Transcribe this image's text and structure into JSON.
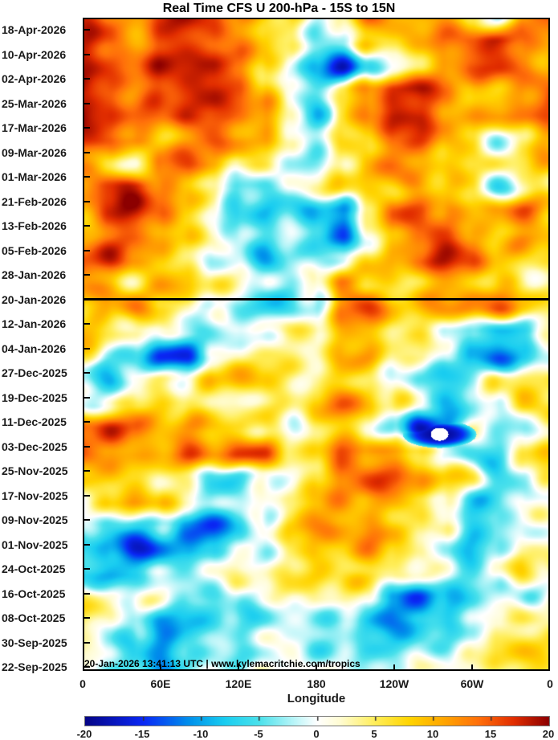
{
  "chart_data": {
    "type": "heatmap",
    "title": "Real Time CFS U 200-hPa - 15S to 15N",
    "xlabel": "Longitude",
    "annotation": "20-Jan-2026 13:41:13 UTC | www.kylemacritchie.com/tropics",
    "x_tick_labels": [
      "0",
      "60E",
      "120E",
      "180",
      "120W",
      "60W",
      "0"
    ],
    "y_tick_labels": [
      "18-Apr-2026",
      "10-Apr-2026",
      "02-Apr-2026",
      "25-Mar-2026",
      "17-Mar-2026",
      "09-Mar-2026",
      "01-Mar-2026",
      "21-Feb-2026",
      "13-Feb-2026",
      "05-Feb-2026",
      "28-Jan-2026",
      "20-Jan-2026",
      "12-Jan-2026",
      "04-Jan-2026",
      "27-Dec-2025",
      "19-Dec-2025",
      "11-Dec-2025",
      "03-Dec-2025",
      "25-Nov-2025",
      "17-Nov-2025",
      "09-Nov-2025",
      "01-Nov-2025",
      "24-Oct-2025",
      "16-Oct-2025",
      "08-Oct-2025",
      "30-Sep-2025",
      "22-Sep-2025"
    ],
    "separator": {
      "label": "20-Jan-2026",
      "y_frac": 0.4293
    },
    "anomaly_spot": {
      "x_frac": 0.7629,
      "y_frac": 0.6372,
      "ring_rx": 46,
      "ring_ry": 17,
      "core_rx": 11,
      "core_ry": 8
    },
    "colorbar": {
      "min": -20,
      "max": 20,
      "tick_labels": [
        "-20",
        "-15",
        "-10",
        "-5",
        "0",
        "5",
        "10",
        "15",
        "20"
      ],
      "stops": [
        [
          -20,
          5,
          5,
          135
        ],
        [
          -15,
          10,
          40,
          245
        ],
        [
          -11,
          0,
          145,
          235
        ],
        [
          -8,
          25,
          205,
          240
        ],
        [
          -5,
          75,
          225,
          235
        ],
        [
          -2,
          185,
          245,
          248
        ],
        [
          0,
          255,
          255,
          255
        ],
        [
          2,
          255,
          252,
          210
        ],
        [
          5,
          255,
          238,
          90
        ],
        [
          8,
          255,
          212,
          0
        ],
        [
          11,
          255,
          165,
          0
        ],
        [
          14,
          255,
          110,
          10
        ],
        [
          17,
          225,
          45,
          0
        ],
        [
          20,
          140,
          0,
          0
        ]
      ]
    },
    "grid": {
      "lon_start": 0,
      "lon_end": 360,
      "units": "m/s",
      "values": [
        [
          15,
          12,
          9,
          16,
          18,
          16,
          11,
          8,
          4,
          -4,
          5,
          13,
          12,
          10,
          12,
          8,
          -5,
          10,
          14
        ],
        [
          17,
          14,
          10,
          15,
          18,
          15,
          12,
          10,
          2,
          -6,
          -4,
          4,
          8,
          10,
          13,
          16,
          18,
          14,
          12
        ],
        [
          16,
          15,
          14,
          17,
          19,
          18,
          14,
          8,
          -2,
          -8,
          -17,
          -5,
          2,
          8,
          12,
          17,
          16,
          13,
          10
        ],
        [
          18,
          16,
          13,
          17,
          19,
          19,
          16,
          10,
          0,
          -6,
          4,
          12,
          18,
          19,
          15,
          10,
          8,
          13,
          14
        ],
        [
          19,
          17,
          14,
          15,
          18,
          17,
          15,
          12,
          2,
          -7,
          6,
          14,
          19,
          17,
          13,
          8,
          10,
          12,
          13
        ],
        [
          18,
          16,
          12,
          10,
          12,
          14,
          12,
          8,
          0,
          -5,
          2,
          8,
          14,
          16,
          12,
          6,
          -4,
          4,
          8
        ],
        [
          10,
          6,
          -3,
          14,
          16,
          10,
          6,
          2,
          -2,
          -4,
          2,
          10,
          14,
          10,
          8,
          4,
          2,
          6,
          8
        ],
        [
          12,
          16,
          18,
          14,
          8,
          2,
          -6,
          -7,
          -3,
          2,
          6,
          10,
          8,
          12,
          10,
          8,
          -5,
          2,
          6
        ],
        [
          8,
          17,
          19,
          15,
          10,
          4,
          -6,
          -8,
          -4,
          -8,
          -10,
          6,
          15,
          18,
          10,
          8,
          12,
          14,
          10
        ],
        [
          10,
          14,
          16,
          12,
          8,
          4,
          -4,
          -6,
          0,
          -9,
          -11,
          2,
          10,
          16,
          17,
          12,
          8,
          10,
          10
        ],
        [
          16,
          18,
          14,
          10,
          6,
          2,
          -3,
          -10,
          -2,
          -5,
          0,
          6,
          10,
          14,
          17,
          14,
          8,
          4,
          6
        ],
        [
          12,
          8,
          6,
          10,
          8,
          4,
          0,
          -3,
          -6,
          0,
          14,
          8,
          6,
          8,
          10,
          8,
          6,
          2,
          4
        ],
        [
          6,
          10,
          14,
          8,
          4,
          0,
          -6,
          -8,
          -7,
          -4,
          12,
          16,
          10,
          8,
          10,
          12,
          14,
          10,
          6
        ],
        [
          8,
          6,
          2,
          0,
          -4,
          -6,
          -3,
          0,
          2,
          6,
          12,
          10,
          8,
          6,
          2,
          -4,
          -10,
          -6,
          4
        ],
        [
          6,
          0,
          -4,
          -14,
          -12,
          -2,
          4,
          6,
          4,
          4,
          10,
          12,
          6,
          2,
          -2,
          -8,
          -14,
          -6,
          0
        ],
        [
          -4,
          -6,
          0,
          4,
          2,
          8,
          12,
          8,
          4,
          6,
          10,
          6,
          2,
          -4,
          -8,
          -4,
          2,
          6,
          4
        ],
        [
          2,
          4,
          8,
          10,
          6,
          2,
          0,
          4,
          2,
          8,
          14,
          10,
          4,
          -2,
          -10,
          -6,
          0,
          8,
          6
        ],
        [
          14,
          18,
          14,
          8,
          10,
          8,
          6,
          2,
          0,
          6,
          8,
          4,
          -6,
          -18,
          -12,
          -2,
          -4,
          -6,
          2
        ],
        [
          16,
          12,
          10,
          12,
          14,
          10,
          16,
          14,
          6,
          4,
          16,
          12,
          10,
          6,
          0,
          -6,
          -4,
          8,
          10
        ],
        [
          10,
          8,
          6,
          4,
          2,
          -4,
          -6,
          0,
          4,
          8,
          14,
          17,
          16,
          12,
          8,
          4,
          -6,
          -2,
          6
        ],
        [
          4,
          8,
          14,
          10,
          2,
          -4,
          -2,
          0,
          4,
          10,
          14,
          12,
          10,
          8,
          2,
          -6,
          -4,
          0,
          4
        ],
        [
          0,
          -4,
          -6,
          -2,
          -10,
          -14,
          -8,
          2,
          10,
          14,
          12,
          10,
          8,
          4,
          -2,
          -8,
          -6,
          -2,
          2
        ],
        [
          -6,
          -8,
          -16,
          -14,
          -12,
          -8,
          -4,
          -2,
          2,
          8,
          10,
          12,
          8,
          2,
          -4,
          -8,
          -4,
          2,
          6
        ],
        [
          -8,
          -10,
          -6,
          -4,
          -2,
          0,
          2,
          4,
          6,
          8,
          6,
          4,
          2,
          0,
          -4,
          -6,
          0,
          8,
          4
        ],
        [
          4,
          2,
          0,
          -2,
          -6,
          -8,
          -4,
          0,
          2,
          4,
          6,
          2,
          -10,
          -14,
          -8,
          -4,
          -2,
          0,
          2
        ],
        [
          6,
          2,
          -2,
          -10,
          -8,
          -6,
          -4,
          -2,
          0,
          -2,
          -4,
          -8,
          -12,
          -10,
          -6,
          -2,
          4,
          8,
          4
        ],
        [
          4,
          0,
          -8,
          -12,
          -6,
          -4,
          -2,
          0,
          2,
          0,
          -2,
          -4,
          -6,
          -4,
          -2,
          0,
          6,
          10,
          6
        ],
        [
          2,
          0,
          -6,
          -8,
          -4,
          -2,
          0,
          2,
          2,
          0,
          -2,
          -4,
          -4,
          -2,
          0,
          2,
          4,
          8,
          4
        ]
      ]
    }
  }
}
